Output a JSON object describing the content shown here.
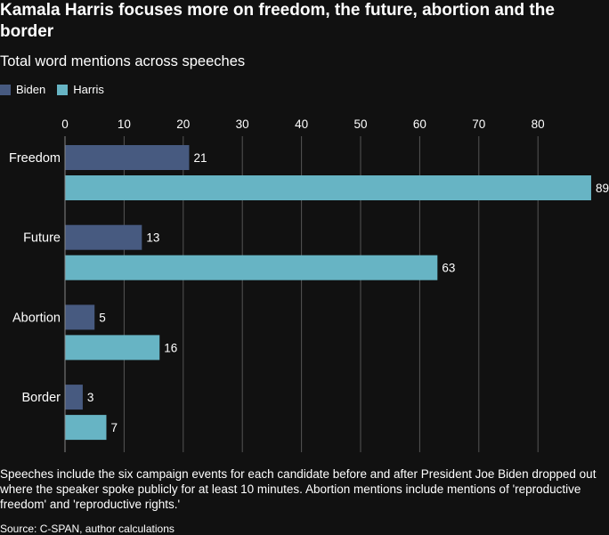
{
  "title": "Kamala Harris focuses more on freedom, the future, abortion and the border",
  "subtitle": "Total word mentions across speeches",
  "note": "Speeches include the six campaign events for each candidate before and after President Joe Biden dropped out where the speaker spoke publicly for at least 10 minutes. Abortion mentions include mentions of 'reproductive freedom' and 'reproductive rights.'",
  "source": "Source: C-SPAN, author calculations",
  "colors": {
    "background": "#111111",
    "biden": "#475a80",
    "harris": "#67b4c4",
    "grid": "#555555"
  },
  "chart_data": {
    "type": "bar",
    "orientation": "horizontal",
    "categories": [
      "Freedom",
      "Future",
      "Abortion",
      "Border"
    ],
    "series": [
      {
        "name": "Biden",
        "values": [
          21,
          13,
          5,
          3
        ]
      },
      {
        "name": "Harris",
        "values": [
          89,
          63,
          16,
          7
        ]
      }
    ],
    "x_ticks": [
      0,
      10,
      20,
      30,
      40,
      50,
      60,
      70,
      80
    ],
    "xlim": [
      0,
      89
    ],
    "grid": true,
    "legend": "top-left",
    "data_labels": true
  }
}
